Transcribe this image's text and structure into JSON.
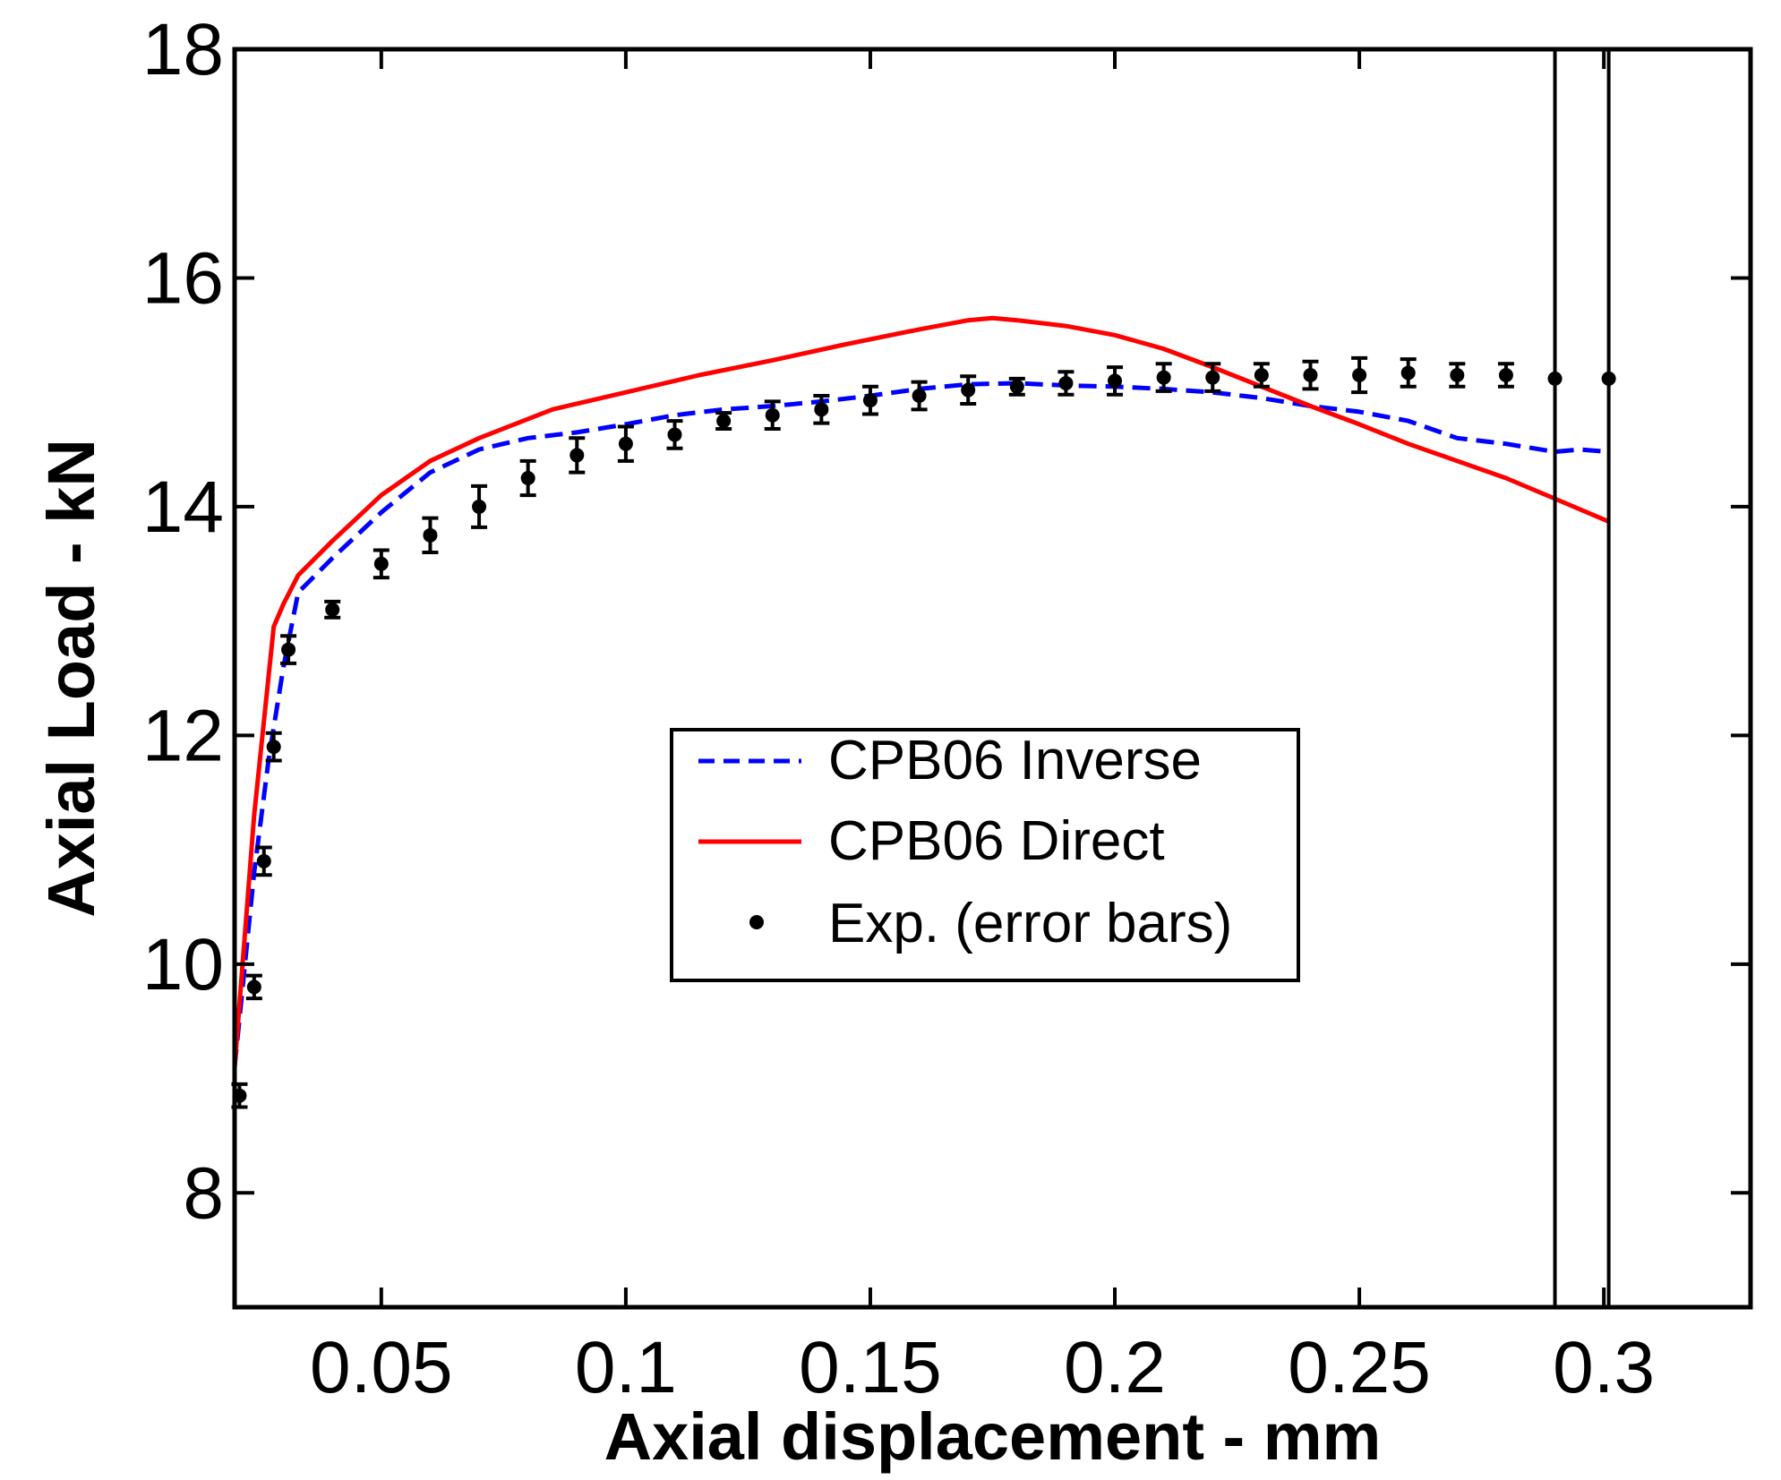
{
  "chart_data": {
    "type": "line",
    "title": "",
    "xlabel": "Axial displacement - mm",
    "ylabel": "Axial Load - kN",
    "xlim": [
      0.02,
      0.33
    ],
    "ylim": [
      7,
      18
    ],
    "xticks": [
      0.05,
      0.1,
      0.15,
      0.2,
      0.25,
      0.3
    ],
    "xtick_labels": [
      "0.05",
      "0.1",
      "0.15",
      "0.2",
      "0.25",
      "0.3"
    ],
    "yticks": [
      8,
      10,
      12,
      14,
      16,
      18
    ],
    "ytick_labels": [
      "8",
      "10",
      "12",
      "14",
      "16",
      "18"
    ],
    "grid": false,
    "legend_position": "center",
    "series": [
      {
        "name": "CPB06 Inverse",
        "style": "dashed",
        "color": "#0000ff",
        "x": [
          0.02,
          0.024,
          0.027,
          0.03,
          0.033,
          0.04,
          0.05,
          0.06,
          0.07,
          0.08,
          0.09,
          0.1,
          0.11,
          0.12,
          0.13,
          0.14,
          0.15,
          0.16,
          0.17,
          0.18,
          0.19,
          0.2,
          0.21,
          0.22,
          0.23,
          0.24,
          0.25,
          0.26,
          0.27,
          0.28,
          0.29,
          0.295,
          0.301
        ],
        "y": [
          9.1,
          10.8,
          11.8,
          12.6,
          13.25,
          13.55,
          13.95,
          14.3,
          14.5,
          14.6,
          14.65,
          14.72,
          14.8,
          14.85,
          14.88,
          14.92,
          14.97,
          15.03,
          15.07,
          15.08,
          15.06,
          15.05,
          15.03,
          15.0,
          14.95,
          14.88,
          14.83,
          14.75,
          14.6,
          14.55,
          14.48,
          14.5,
          14.48
        ]
      },
      {
        "name": "CPB06 Direct",
        "style": "solid",
        "color": "#ff0000",
        "x": [
          0.02,
          0.024,
          0.028,
          0.03,
          0.033,
          0.04,
          0.05,
          0.06,
          0.07,
          0.085,
          0.1,
          0.115,
          0.13,
          0.145,
          0.16,
          0.17,
          0.175,
          0.18,
          0.19,
          0.2,
          0.21,
          0.22,
          0.23,
          0.24,
          0.25,
          0.26,
          0.27,
          0.28,
          0.29,
          0.301
        ],
        "y": [
          9.1,
          11.3,
          12.95,
          13.15,
          13.4,
          13.7,
          14.1,
          14.4,
          14.6,
          14.85,
          15.0,
          15.15,
          15.28,
          15.42,
          15.55,
          15.63,
          15.65,
          15.63,
          15.58,
          15.5,
          15.38,
          15.22,
          15.05,
          14.88,
          14.72,
          14.55,
          14.4,
          14.25,
          14.07,
          13.87
        ]
      },
      {
        "name": "Exp. (error bars)",
        "style": "marker",
        "color": "#000000",
        "x": [
          0.021,
          0.024,
          0.026,
          0.028,
          0.031,
          0.04,
          0.05,
          0.06,
          0.07,
          0.08,
          0.09,
          0.1,
          0.11,
          0.12,
          0.13,
          0.14,
          0.15,
          0.16,
          0.17,
          0.18,
          0.19,
          0.2,
          0.21,
          0.22,
          0.23,
          0.24,
          0.25,
          0.26,
          0.27,
          0.28,
          0.29,
          0.301
        ],
        "y": [
          8.85,
          9.8,
          10.9,
          11.9,
          12.75,
          13.1,
          13.5,
          13.75,
          14.0,
          14.25,
          14.45,
          14.55,
          14.63,
          14.75,
          14.8,
          14.85,
          14.93,
          14.97,
          15.02,
          15.05,
          15.08,
          15.1,
          15.13,
          15.13,
          15.15,
          15.15,
          15.15,
          15.17,
          15.15,
          15.15,
          15.12,
          15.12
        ],
        "err": [
          0.1,
          0.1,
          0.12,
          0.12,
          0.12,
          0.07,
          0.12,
          0.15,
          0.18,
          0.15,
          0.15,
          0.15,
          0.12,
          0.07,
          0.12,
          0.12,
          0.12,
          0.12,
          0.12,
          0.07,
          0.1,
          0.12,
          0.12,
          0.12,
          0.1,
          0.12,
          0.15,
          0.12,
          0.1,
          0.1,
          15.0,
          15.0
        ]
      }
    ]
  }
}
